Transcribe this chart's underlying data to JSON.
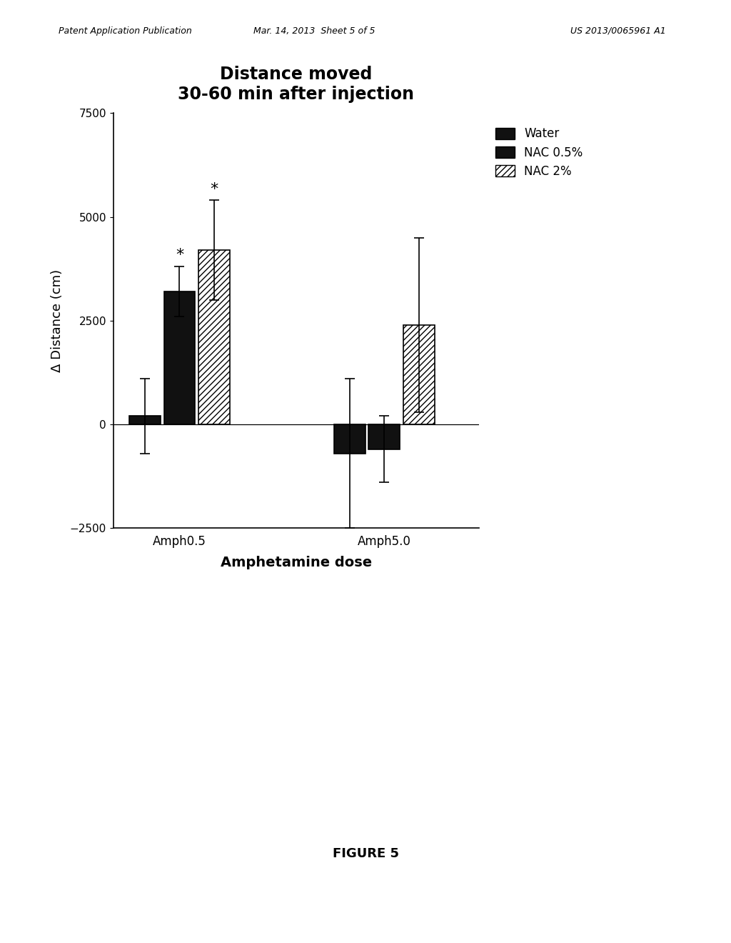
{
  "title_line1": "Distance moved",
  "title_line2": "30-60 min after injection",
  "xlabel": "Amphetamine dose",
  "ylabel": "Δ Distance (cm)",
  "groups": [
    "Amph0.5",
    "Amph5.0"
  ],
  "conditions": [
    "Water",
    "NAC 0.5%",
    "NAC 2%"
  ],
  "bar_values": {
    "Amph0.5": [
      200,
      3200,
      4200
    ],
    "Amph5.0": [
      -700,
      -600,
      2400
    ]
  },
  "error_bars": {
    "Amph0.5": [
      900,
      600,
      1200
    ],
    "Amph5.0": [
      1800,
      800,
      2100
    ]
  },
  "ylim": [
    -2500,
    7500
  ],
  "yticks": [
    -2500,
    0,
    2500,
    5000,
    7500
  ],
  "bar_width": 0.22,
  "group_positions": [
    1.0,
    2.3
  ],
  "colors": [
    "#111111",
    "#111111",
    "white"
  ],
  "hatch": [
    null,
    null,
    "////"
  ],
  "header_left": "Patent Application Publication",
  "header_mid": "Mar. 14, 2013  Sheet 5 of 5",
  "header_right": "US 2013/0065961 A1",
  "footer_text": "FIGURE 5",
  "title_fontsize": 17,
  "axis_label_fontsize": 13,
  "tick_fontsize": 11,
  "legend_fontsize": 12
}
